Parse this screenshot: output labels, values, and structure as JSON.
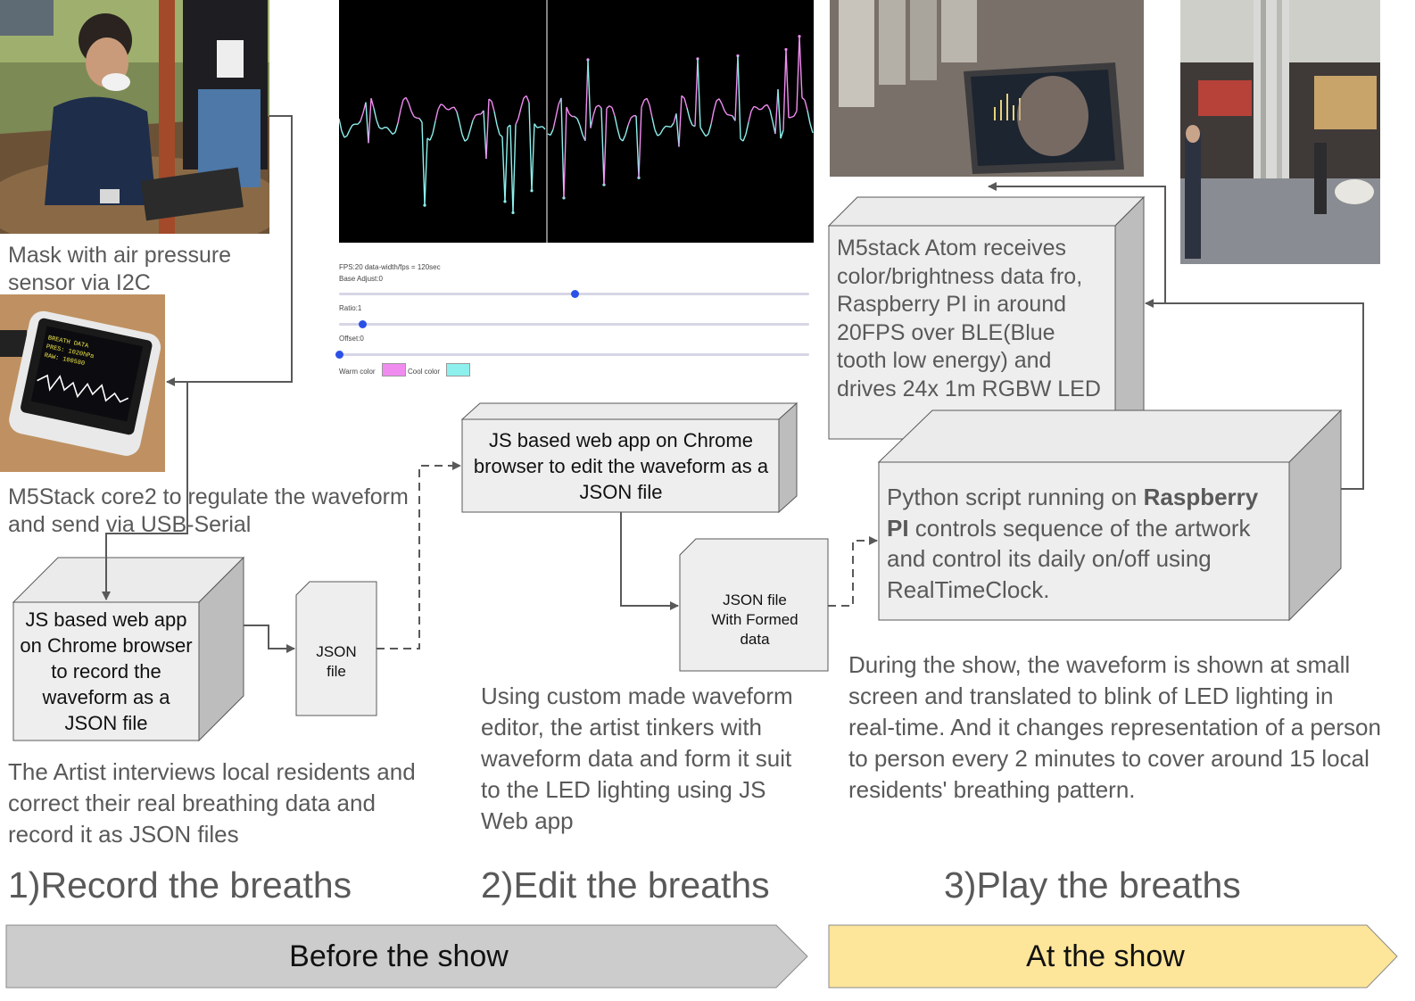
{
  "captions": {
    "mask": "Mask with air pressure sensor via I2C",
    "m5stack": "M5Stack core2 to regulate the waveform and send via USB-Serial"
  },
  "boxes": {
    "record_app": "JS based web app on Chrome browser to record the waveform as a JSON file",
    "json_file": "JSON file",
    "edit_app": "JS based web app on Chrome browser to edit the waveform as a JSON file",
    "formed_json": "JSON file With Formed data",
    "atom_prefix": "M5stack Atom receives color/brightness data fro, Raspberry PI in around 20FPS over BLE(Blue tooth low energy) and drives 24x 1m RGBW LED",
    "python_before": "Python script running on ",
    "python_bold": "Raspberry PI",
    "python_after": " controls sequence of the artwork and control its daily on/off using RealTimeClock."
  },
  "editor": {
    "fps_label": "FPS:20 data-width/fps = 120sec",
    "base_adjust": "Base Adjust:0",
    "ratio": "Ratio:1",
    "offset": "Offset:0",
    "warm_color": "Warm color",
    "cool_color": "Cool color",
    "warm_hex": "#f08cf0",
    "cool_hex": "#8ef0ec",
    "base_adjust_level": 0.5,
    "ratio_level": 0.05,
    "offset_level": 0.0
  },
  "descriptions": {
    "record": "The Artist interviews local residents and correct their real breathing data and record it as JSON files",
    "edit": "Using custom made waveform editor, the artist tinkers with waveform data and form it suit to the LED lighting using JS Web app",
    "play": "During the show, the waveform is shown at small screen and translated to blink of LED lighting in real-time. And it changes representation of a person to person every 2 minutes to cover around 15 local residents' breathing pattern."
  },
  "headings": {
    "record": "1)Record the breaths",
    "edit": "2)Edit the breaths",
    "play": "3)Play the breaths"
  },
  "phases": {
    "before": "Before the show",
    "at": "At the show",
    "before_color": "#cccccc",
    "at_color": "#fde59a"
  }
}
